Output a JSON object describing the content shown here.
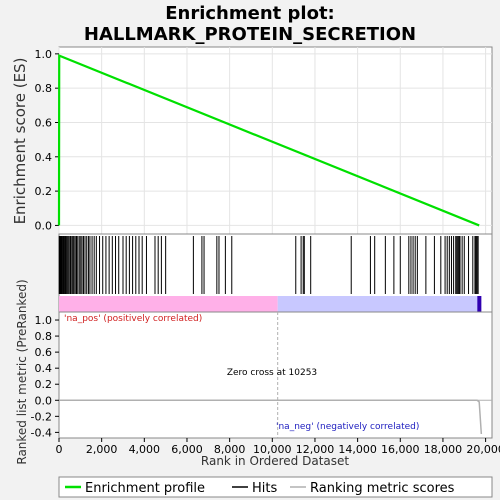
{
  "chart_data": {
    "type": "line",
    "title_line1": "Enrichment plot:",
    "title_line2": "HALLMARK_PROTEIN_SECRETION",
    "xlabel": "Rank in Ordered Dataset",
    "ylabel_top": "Enrichment score (ES)",
    "ylabel_bottom": "Ranked list metric (PreRanked)",
    "xlim": [
      0,
      20300
    ],
    "es_ylim": [
      -0.05,
      1.04
    ],
    "metric_ylim": [
      -0.47,
      1.1
    ],
    "x_ticks": [
      0,
      2000,
      4000,
      6000,
      8000,
      10000,
      12000,
      14000,
      16000,
      18000,
      20000
    ],
    "x_tick_labels": [
      "0",
      "2,000",
      "4,000",
      "6,000",
      "8,000",
      "10,000",
      "12,000",
      "14,000",
      "16,000",
      "18,000",
      "20,000"
    ],
    "es_ticks": [
      0.0,
      0.2,
      0.4,
      0.6,
      0.8,
      1.0
    ],
    "es_tick_labels": [
      "0.0",
      "0.2",
      "0.4",
      "0.6",
      "0.8",
      "1.0"
    ],
    "metric_ticks": [
      -0.4,
      -0.2,
      0.0,
      0.2,
      0.4,
      0.6,
      0.8,
      1.0
    ],
    "metric_tick_labels": [
      "-0.4",
      "-0.2",
      "0.0",
      "0.2",
      "0.4",
      "0.6",
      "0.8",
      "1.0"
    ],
    "enrichment_profile": {
      "x": [
        0,
        10,
        19700
      ],
      "y": [
        0.0,
        0.99,
        0.0
      ]
    },
    "hits": [
      10,
      40,
      70,
      100,
      130,
      170,
      210,
      250,
      290,
      330,
      380,
      430,
      480,
      540,
      600,
      650,
      700,
      760,
      820,
      880,
      950,
      1020,
      1080,
      1150,
      1220,
      1300,
      1380,
      1450,
      1550,
      1650,
      1750,
      1900,
      2050,
      2200,
      2350,
      2500,
      2650,
      2800,
      3000,
      3150,
      3300,
      3450,
      3600,
      3750,
      3900,
      4100,
      4500,
      4650,
      4800,
      5000,
      6300,
      6700,
      6800,
      7400,
      7500,
      7800,
      8100,
      11100,
      11350,
      11450,
      11500,
      11800,
      13700,
      14600,
      14800,
      15300,
      15700,
      16000,
      16400,
      16500,
      16600,
      16700,
      16800,
      17200,
      17600,
      17900,
      18100,
      18200,
      18300,
      18400,
      18500,
      18600,
      18650,
      18700,
      18750,
      18800,
      18900,
      19000,
      19200,
      19400,
      19500,
      19550,
      19600,
      19650
    ],
    "metric": {
      "x": [
        0,
        19600,
        19700,
        19800
      ],
      "y": [
        0.0,
        0.0,
        -0.02,
        -0.42
      ]
    },
    "zero_cross": 10253,
    "annotations": {
      "pos_label": "'na_pos' (positively correlated)",
      "neg_label": "'na_neg' (negatively correlated)",
      "zero_cross_label": "Zero cross at 10253"
    },
    "legend": {
      "entries": [
        "Enrichment profile",
        "Hits",
        "Ranking metric scores"
      ],
      "placement": "bottom"
    },
    "colors": {
      "profile": "#00e000",
      "hits": "#000000",
      "metric": "#b0b0b0",
      "pos_band": "#ffb0e8",
      "neg_band": "#c8c8ff",
      "pos_text": "#d02020",
      "neg_text": "#2020c0",
      "zero_cross_line": "#b0b0b0"
    }
  }
}
